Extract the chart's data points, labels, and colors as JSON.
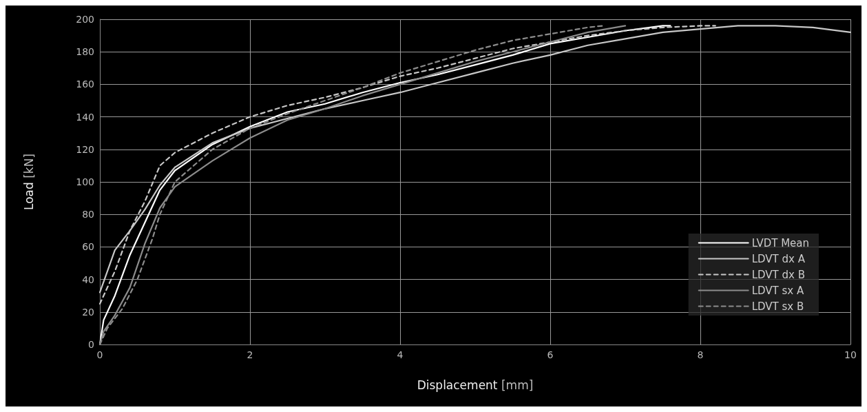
{
  "chart_data": {
    "type": "line",
    "xlabel": "Displacement [mm]",
    "ylabel": "Load [kN]",
    "xlim": [
      0,
      10
    ],
    "ylim": [
      0,
      200
    ],
    "xticks": [
      0,
      2,
      4,
      6,
      8,
      10
    ],
    "yticks": [
      0,
      20,
      40,
      60,
      80,
      100,
      120,
      140,
      160,
      180,
      200
    ],
    "grid": true,
    "legend": "bottom right",
    "marker": "none",
    "series": [
      {
        "name": "LVDT Mean",
        "color": "#ffffff",
        "line_style": "solid",
        "x": [
          0,
          0.05,
          0.2,
          0.4,
          0.6,
          0.8,
          1,
          1.5,
          2,
          2.5,
          3,
          3.5,
          4,
          4.5,
          5,
          5.5,
          6,
          6.5,
          7,
          7.5,
          7.6
        ],
        "values": [
          0,
          15,
          30,
          55,
          75,
          95,
          107,
          123,
          134,
          143,
          148,
          155,
          161,
          166,
          172,
          178,
          185,
          189,
          193,
          196,
          196
        ]
      },
      {
        "name": "LDVT dx A",
        "color": "#c8c8c8",
        "line_style": "solid",
        "x": [
          0,
          0.1,
          0.2,
          0.4,
          0.6,
          0.8,
          1,
          1.5,
          2,
          2.5,
          3,
          3.5,
          4,
          4.5,
          5,
          5.5,
          6,
          6.5,
          7,
          7.5,
          8,
          8.5,
          9,
          9.5,
          10
        ],
        "values": [
          32,
          45,
          58,
          70,
          83,
          98,
          109,
          124,
          133,
          139,
          145,
          150,
          155,
          161,
          167,
          173,
          178,
          184,
          188,
          192,
          194,
          196,
          196,
          195,
          192
        ]
      },
      {
        "name": "LDVT dx B",
        "color": "#c8c8c8",
        "line_style": "dashed",
        "x": [
          0,
          0.2,
          0.4,
          0.6,
          0.8,
          1,
          1.5,
          2,
          2.5,
          3,
          3.5,
          4,
          4.5,
          5,
          5.5,
          6,
          6.5,
          7,
          7.5,
          8,
          8.2
        ],
        "values": [
          25,
          45,
          70,
          88,
          110,
          118,
          130,
          140,
          147,
          152,
          158,
          165,
          170,
          176,
          182,
          186,
          190,
          193,
          195,
          196,
          196
        ]
      },
      {
        "name": "LDVT sx A",
        "color": "#8c8c8c",
        "line_style": "solid",
        "x": [
          0,
          0.05,
          0.2,
          0.4,
          0.6,
          0.8,
          1,
          1.5,
          2,
          2.5,
          3,
          3.5,
          4,
          4.5,
          5,
          5.5,
          6,
          6.5,
          7
        ],
        "values": [
          0,
          8,
          18,
          35,
          62,
          84,
          97,
          113,
          127,
          138,
          145,
          153,
          160,
          167,
          174,
          180,
          186,
          192,
          196
        ]
      },
      {
        "name": "LDVT sx B",
        "color": "#8c8c8c",
        "line_style": "dashed",
        "x": [
          0,
          0.1,
          0.3,
          0.5,
          0.7,
          0.8,
          1,
          1.5,
          2,
          2.5,
          3,
          3.5,
          4,
          4.5,
          5,
          5.5,
          6,
          6.5,
          6.7
        ],
        "values": [
          0,
          10,
          22,
          40,
          65,
          80,
          100,
          120,
          133,
          142,
          150,
          158,
          167,
          174,
          181,
          187,
          191,
          195,
          196
        ]
      }
    ]
  }
}
